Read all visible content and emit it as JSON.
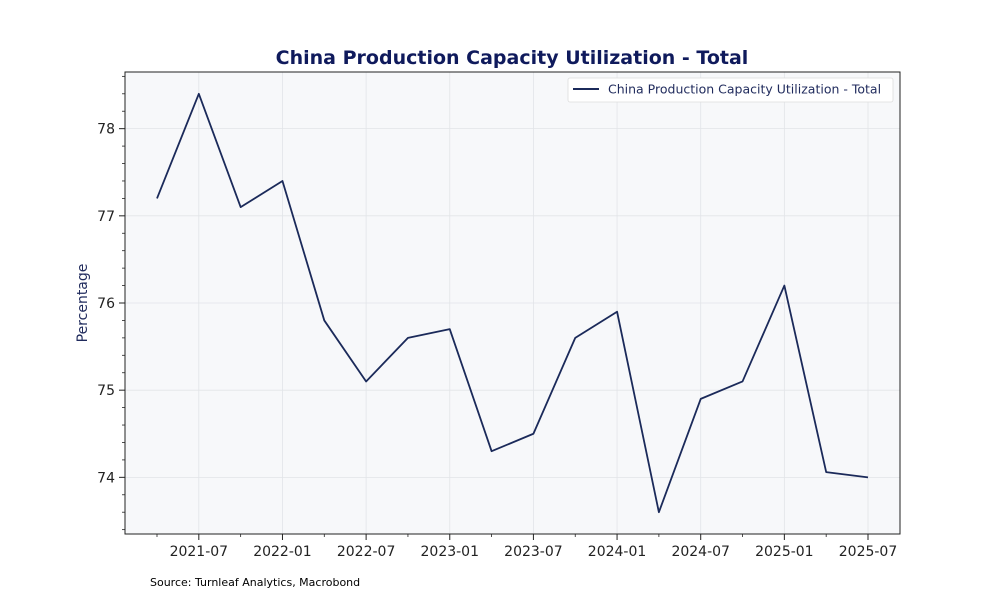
{
  "chart_data": {
    "type": "line",
    "title": "China Production Capacity Utilization - Total",
    "xlabel": "",
    "ylabel": "Percentage",
    "ylim": [
      73.35,
      78.65
    ],
    "yticks": [
      74,
      75,
      76,
      77,
      78
    ],
    "xticks": [
      "2021-07",
      "2022-01",
      "2022-07",
      "2023-01",
      "2023-07",
      "2024-01",
      "2024-07",
      "2025-01",
      "2025-07"
    ],
    "grid": true,
    "legend_position": "top-right",
    "series": [
      {
        "name": "China Production Capacity Utilization - Total",
        "color": "#1b2a5a",
        "x": [
          "2021-04",
          "2021-07",
          "2021-10",
          "2022-01",
          "2022-04",
          "2022-07",
          "2022-10",
          "2023-01",
          "2023-04",
          "2023-07",
          "2023-10",
          "2024-01",
          "2024-04",
          "2024-07",
          "2024-10",
          "2025-01",
          "2025-04",
          "2025-07"
        ],
        "y": [
          77.2,
          78.4,
          77.1,
          77.4,
          75.8,
          75.1,
          75.6,
          75.7,
          74.3,
          74.5,
          75.6,
          75.9,
          73.6,
          74.9,
          75.1,
          76.2,
          74.06,
          74.0
        ]
      }
    ]
  },
  "footer": {
    "source": "Source: Turnleaf Analytics, Macrobond"
  },
  "colors": {
    "plot_background": "#f7f8fa",
    "grid": "#e2e4e8",
    "title": "#0f1a5c",
    "line": "#1b2a5a"
  }
}
